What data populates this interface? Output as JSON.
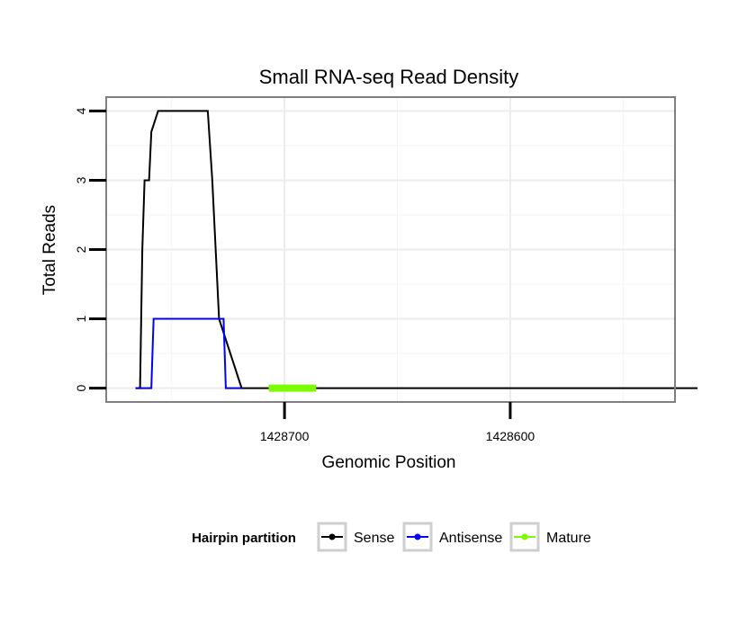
{
  "chart_data": {
    "type": "line",
    "title": "Small RNA-seq Read Density",
    "xlabel": "Genomic Position",
    "ylabel": "Total Reads",
    "x_reversed": true,
    "xlim": [
      1428779,
      1428527
    ],
    "ylim": [
      -0.2,
      4.2
    ],
    "x_ticks": [
      1428700,
      1428600
    ],
    "x_tick_labels": [
      "1428700",
      "1428600"
    ],
    "y_ticks": [
      0,
      1,
      2,
      3,
      4
    ],
    "y_tick_labels": [
      "0",
      "1",
      "2",
      "3",
      "4"
    ],
    "x_minor_gridlines": [
      1428750,
      1428650,
      1428550
    ],
    "y_minor_gridlines": [
      0.5,
      1.5,
      2.5,
      3.5
    ],
    "grid": true,
    "series": [
      {
        "name": "Sense",
        "color": "#000000",
        "x": [
          1428766,
          1428764,
          1428763,
          1428762,
          1428760,
          1428759,
          1428756,
          1428734,
          1428732,
          1428729,
          1428719,
          1428517
        ],
        "y": [
          0,
          0,
          2,
          3,
          3,
          3.7,
          4,
          4,
          3,
          1,
          0,
          0
        ]
      },
      {
        "name": "Antisense",
        "color": "#0000ff",
        "x": [
          1428766,
          1428759,
          1428758,
          1428727,
          1428726,
          1428719
        ],
        "y": [
          0,
          0,
          1,
          1,
          0,
          0
        ]
      },
      {
        "name": "Mature",
        "color": "#7cfc00",
        "x": [
          1428707,
          1428686
        ],
        "y": [
          0,
          0
        ]
      }
    ],
    "legend": {
      "title": "Hairpin partition",
      "position": "bottom",
      "entries": [
        "Sense",
        "Antisense",
        "Mature"
      ]
    }
  }
}
